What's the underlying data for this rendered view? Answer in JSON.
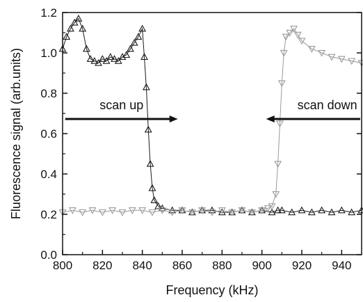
{
  "chart_data": {
    "type": "scatter",
    "xlabel": "Frequency (kHz)",
    "ylabel": "Fluorescence signal (arb.units)",
    "xlim": [
      800,
      950
    ],
    "ylim": [
      0.0,
      1.2
    ],
    "x_ticks": [
      "800",
      "820",
      "840",
      "860",
      "880",
      "900",
      "920",
      "940"
    ],
    "y_ticks": [
      "0.0",
      "0.2",
      "0.4",
      "0.6",
      "0.8",
      "1.0",
      "1.2"
    ],
    "grid": false,
    "legend": "none",
    "series": [
      {
        "name": "scan up",
        "marker": "triangle-up",
        "color": "#1a1a1a",
        "x": [
          800,
          802,
          804,
          806,
          808,
          810,
          812,
          814,
          816,
          818,
          820,
          822,
          824,
          826,
          828,
          830,
          832,
          834,
          836,
          838,
          840,
          841,
          842,
          843,
          844,
          845,
          846,
          848,
          850,
          855,
          860,
          865,
          870,
          875,
          880,
          885,
          890,
          895,
          900,
          905,
          908,
          910,
          915,
          920,
          925,
          930,
          935,
          940,
          945,
          950
        ],
        "y": [
          1.02,
          1.08,
          1.12,
          1.15,
          1.17,
          1.12,
          1.02,
          0.97,
          0.96,
          0.95,
          0.97,
          0.96,
          0.98,
          0.97,
          0.96,
          0.98,
          0.99,
          1.02,
          1.05,
          1.08,
          1.12,
          0.98,
          0.83,
          0.62,
          0.45,
          0.33,
          0.27,
          0.24,
          0.23,
          0.22,
          0.22,
          0.21,
          0.22,
          0.22,
          0.21,
          0.21,
          0.22,
          0.21,
          0.22,
          0.21,
          0.22,
          0.22,
          0.21,
          0.22,
          0.21,
          0.22,
          0.21,
          0.22,
          0.21,
          0.22
        ]
      },
      {
        "name": "scan down",
        "marker": "triangle-down",
        "color": "#9a9a9a",
        "x": [
          800,
          805,
          810,
          815,
          820,
          825,
          830,
          835,
          840,
          845,
          850,
          855,
          860,
          865,
          870,
          875,
          880,
          885,
          890,
          895,
          900,
          903,
          905,
          907,
          908,
          909,
          910,
          911,
          912,
          914,
          916,
          918,
          920,
          925,
          930,
          935,
          940,
          945,
          950
        ],
        "y": [
          0.21,
          0.22,
          0.21,
          0.22,
          0.21,
          0.22,
          0.21,
          0.22,
          0.22,
          0.21,
          0.22,
          0.21,
          0.22,
          0.21,
          0.22,
          0.21,
          0.22,
          0.21,
          0.22,
          0.21,
          0.22,
          0.23,
          0.24,
          0.3,
          0.45,
          0.65,
          0.85,
          1.0,
          1.08,
          1.1,
          1.12,
          1.09,
          1.06,
          1.02,
          1.0,
          0.98,
          0.97,
          0.96,
          0.95
        ]
      }
    ],
    "annotations": [
      {
        "text": "scan up",
        "arrow": "right",
        "at": [
          832,
          0.7
        ]
      },
      {
        "text": "scan down",
        "arrow": "left",
        "at": [
          930,
          0.7
        ]
      }
    ]
  }
}
